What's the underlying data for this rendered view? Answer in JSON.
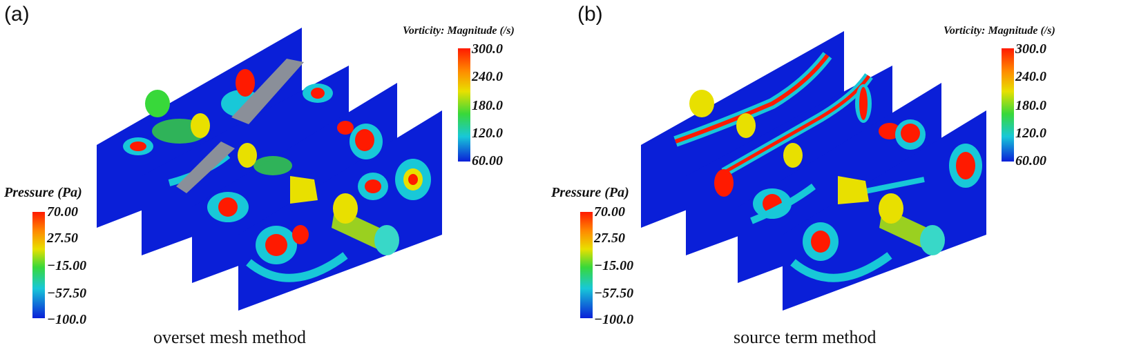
{
  "panels": [
    {
      "label": "(a)",
      "caption": "overset mesh method",
      "vorticity_legend": {
        "title": "Vorticity: Magnitude (/s)",
        "ticks": [
          "300.0",
          "240.0",
          "180.0",
          "120.0",
          "60.00"
        ]
      },
      "pressure_legend": {
        "title": "Pressure (Pa)",
        "ticks": [
          "70.00",
          "27.50",
          "−15.00",
          "−57.50",
          "−100.0"
        ]
      }
    },
    {
      "label": "(b)",
      "caption": "source term method",
      "vorticity_legend": {
        "title": "Vorticity: Magnitude (/s)",
        "ticks": [
          "300.0",
          "240.0",
          "180.0",
          "120.0",
          "60.00"
        ]
      },
      "pressure_legend": {
        "title": "Pressure (Pa)",
        "ticks": [
          "70.00",
          "27.50",
          "−15.00",
          "−57.50",
          "−100.0"
        ]
      }
    }
  ],
  "colors": {
    "slice_blue": "#0a1fd8",
    "vortex_red": "#ff1a00",
    "vortex_yellow": "#e8e000",
    "vortex_cyan": "#18c8d8",
    "vortex_green": "#38d83a",
    "plate_gray": "#8a8f99"
  }
}
